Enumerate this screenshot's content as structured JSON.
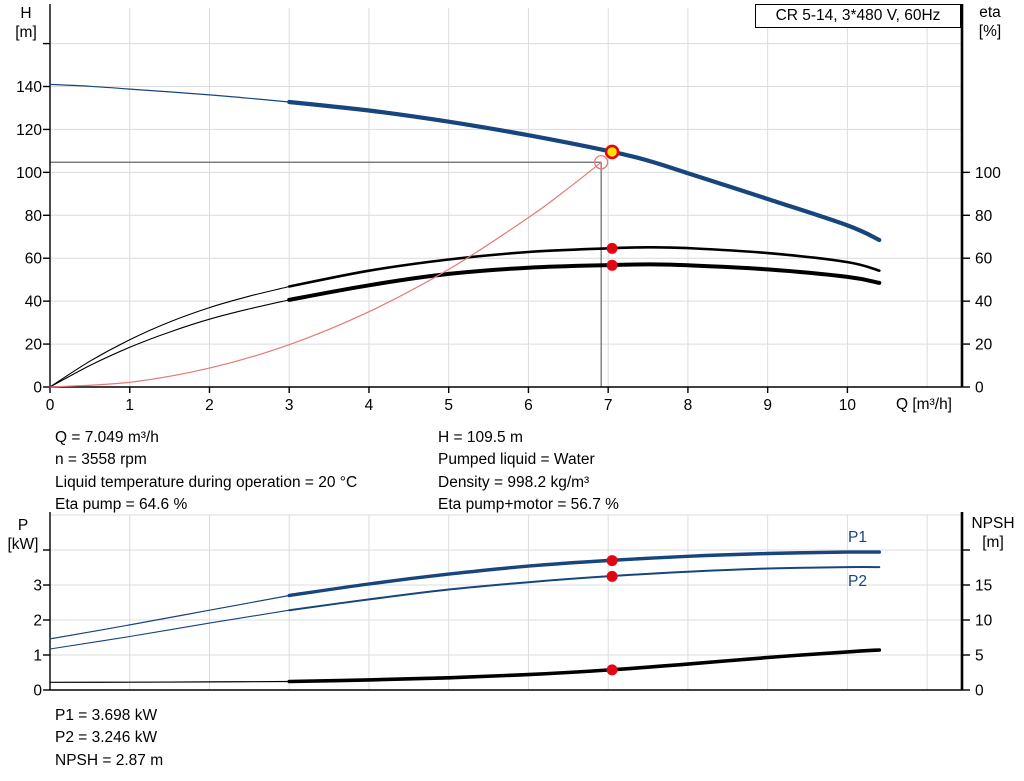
{
  "title_box": {
    "label": "CR 5-14, 3*480 V, 60Hz"
  },
  "colors": {
    "curve_blue": "#17457d",
    "curve_black": "#000000",
    "system_curve_red": "#e87878",
    "marker_red": "#e30613",
    "marker_yellow": "#ffe100",
    "crosshair_gray": "#666666",
    "grid_gray": "#dcdcdc",
    "axis_black": "#000000"
  },
  "chart_data": [
    {
      "type": "line",
      "title": "CR 5-14, 3*480 V, 60Hz",
      "x_axis": {
        "label": "Q [m³/h]",
        "min": 0,
        "max": 11.44,
        "ticks": [
          0,
          1,
          2,
          3,
          4,
          5,
          6,
          7,
          8,
          9,
          10
        ],
        "gridlines": [
          1,
          2,
          3,
          4,
          5,
          6,
          7,
          8,
          9,
          10,
          11
        ]
      },
      "y_left": {
        "label_1": "H",
        "label_2": "[m]",
        "min": 0,
        "max": 176,
        "ticks": [
          0,
          20,
          40,
          60,
          80,
          100,
          120,
          140
        ],
        "unlabeled_ticks": [
          160
        ],
        "gridlines": [
          20,
          40,
          60,
          80,
          100,
          120,
          140,
          160
        ]
      },
      "y_right": {
        "label_1": "eta",
        "label_2": "[%]",
        "min": 0,
        "ticks": [
          0,
          20,
          40,
          60,
          80,
          100
        ],
        "unlabeled_ticks": [],
        "scale_note": "1 % on right axis aligns with 1 m on left axis"
      },
      "series": [
        {
          "name": "head-curve",
          "axis": "left",
          "color": "curve_blue",
          "width_thin": 1.2,
          "width_thick": 4.2,
          "thin_before": 3,
          "points": [
            [
              0,
              141
            ],
            [
              0.5,
              140.1
            ],
            [
              1,
              138.8
            ],
            [
              1.5,
              137.5
            ],
            [
              2,
              136.1
            ],
            [
              2.5,
              134.5
            ],
            [
              3,
              132.8
            ],
            [
              4,
              128.8
            ],
            [
              5,
              123.6
            ],
            [
              6,
              117.3
            ],
            [
              7,
              110.0
            ],
            [
              7.5,
              105.5
            ],
            [
              8,
              99.6
            ],
            [
              9,
              87.6
            ],
            [
              10,
              75.3
            ],
            [
              10.4,
              68.5
            ]
          ]
        },
        {
          "name": "eta-pump-curve",
          "axis": "right",
          "color": "curve_black",
          "width_thin": 1.1,
          "width_thick": 2.6,
          "thin_before": 3,
          "points": [
            [
              0,
              0
            ],
            [
              0.5,
              12
            ],
            [
              1,
              22
            ],
            [
              1.5,
              30.3
            ],
            [
              2,
              37
            ],
            [
              2.5,
              42.3
            ],
            [
              3,
              46.8
            ],
            [
              4,
              54.2
            ],
            [
              5,
              59.4
            ],
            [
              6,
              62.9
            ],
            [
              7,
              64.6
            ],
            [
              7.5,
              65.1
            ],
            [
              8,
              64.7
            ],
            [
              9,
              62.4
            ],
            [
              10,
              58.2
            ],
            [
              10.4,
              54.2
            ]
          ]
        },
        {
          "name": "eta-pump-motor-curve",
          "axis": "right",
          "color": "curve_black",
          "width_thin": 1.1,
          "width_thick": 4.0,
          "thin_before": 3,
          "points": [
            [
              0,
              0
            ],
            [
              0.5,
              10
            ],
            [
              1,
              18.5
            ],
            [
              1.5,
              25.6
            ],
            [
              2,
              31.6
            ],
            [
              2.5,
              36.4
            ],
            [
              3,
              40.6
            ],
            [
              4,
              47.4
            ],
            [
              5,
              52.7
            ],
            [
              6,
              55.6
            ],
            [
              7,
              56.8
            ],
            [
              7.5,
              57.1
            ],
            [
              8,
              56.7
            ],
            [
              9,
              54.8
            ],
            [
              10,
              51.3
            ],
            [
              10.4,
              48.5
            ]
          ]
        },
        {
          "name": "system-curve",
          "axis": "left",
          "color": "system_curve_red",
          "width_thin": 1.2,
          "width_thick": 1.2,
          "thin_before": 99,
          "points": [
            [
              0,
              0
            ],
            [
              1,
              2.2
            ],
            [
              2,
              8.8
            ],
            [
              3,
              19.7
            ],
            [
              4,
              35.1
            ],
            [
              5,
              54.8
            ],
            [
              6,
              78.9
            ],
            [
              6.5,
              92.6
            ],
            [
              6.912,
              104.7
            ]
          ]
        }
      ],
      "crosshair": {
        "q": 6.912,
        "value": 104.7,
        "axis": "left"
      },
      "markers": [
        {
          "name": "requested-duty-point",
          "style": "open-red-circle",
          "axis": "left",
          "q": 6.912,
          "value": 104.7
        },
        {
          "name": "duty-point-head",
          "style": "yellow-dot-red-ring",
          "axis": "left",
          "q": 7.049,
          "value": 109.5
        },
        {
          "name": "duty-point-eta-pump",
          "style": "red-dot",
          "axis": "right",
          "q": 7.049,
          "value": 64.6
        },
        {
          "name": "duty-point-eta-pump-motor",
          "style": "red-dot",
          "axis": "right",
          "q": 7.049,
          "value": 56.7
        }
      ]
    },
    {
      "type": "line",
      "title": "",
      "x_axis": {
        "label": "",
        "min": 0,
        "max": 11.44,
        "ticks": [],
        "gridlines": [
          1,
          2,
          3,
          4,
          5,
          6,
          7,
          8,
          9,
          10,
          11
        ]
      },
      "y_left": {
        "label_1": "P",
        "label_2": "[kW]",
        "min": 0,
        "max": 5,
        "ticks": [
          0,
          1,
          2,
          3
        ],
        "unlabeled_ticks": [
          4
        ],
        "gridlines": [
          1,
          2,
          3,
          4,
          5
        ]
      },
      "y_right": {
        "label_1": "NPSH",
        "label_2": "[m]",
        "min": 0,
        "max": 25,
        "ticks": [
          0,
          5,
          10,
          15
        ],
        "unlabeled_ticks": [
          20
        ],
        "scale_note": "5 m NPSH aligns with 1 kW on left axis"
      },
      "curve_labels": [
        {
          "text": "P1"
        },
        {
          "text": "P2"
        }
      ],
      "series": [
        {
          "name": "p1-curve",
          "axis": "left",
          "color": "curve_blue",
          "width_thin": 1.2,
          "width_thick": 3.4,
          "thin_before": 3,
          "points": [
            [
              0,
              1.46
            ],
            [
              1,
              1.86
            ],
            [
              2,
              2.28
            ],
            [
              3,
              2.7
            ],
            [
              4,
              3.03
            ],
            [
              5,
              3.31
            ],
            [
              6,
              3.54
            ],
            [
              7,
              3.7
            ],
            [
              8,
              3.82
            ],
            [
              9,
              3.9
            ],
            [
              10,
              3.94
            ],
            [
              10.4,
              3.94
            ]
          ]
        },
        {
          "name": "p2-curve",
          "axis": "left",
          "color": "curve_blue",
          "width_thin": 1.1,
          "width_thick": 2.0,
          "thin_before": 3,
          "points": [
            [
              0,
              1.17
            ],
            [
              1,
              1.53
            ],
            [
              2,
              1.91
            ],
            [
              3,
              2.28
            ],
            [
              4,
              2.59
            ],
            [
              5,
              2.87
            ],
            [
              6,
              3.08
            ],
            [
              7,
              3.25
            ],
            [
              8,
              3.38
            ],
            [
              9,
              3.47
            ],
            [
              10,
              3.51
            ],
            [
              10.4,
              3.51
            ]
          ]
        },
        {
          "name": "npsh-curve",
          "axis": "right",
          "color": "curve_black",
          "width_thin": 1.2,
          "width_thick": 3.6,
          "thin_before": 3,
          "points": [
            [
              0,
              1.1
            ],
            [
              1,
              1.12
            ],
            [
              2,
              1.16
            ],
            [
              3,
              1.22
            ],
            [
              4,
              1.45
            ],
            [
              5,
              1.75
            ],
            [
              6,
              2.2
            ],
            [
              7,
              2.85
            ],
            [
              8,
              3.7
            ],
            [
              9,
              4.65
            ],
            [
              10,
              5.45
            ],
            [
              10.4,
              5.72
            ]
          ]
        }
      ],
      "markers": [
        {
          "name": "duty-point-p1",
          "style": "red-dot",
          "axis": "left",
          "q": 7.049,
          "value": 3.698
        },
        {
          "name": "duty-point-p2",
          "style": "red-dot",
          "axis": "left",
          "q": 7.049,
          "value": 3.246
        },
        {
          "name": "duty-point-npsh",
          "style": "red-dot",
          "axis": "right",
          "q": 7.049,
          "value": 2.87
        }
      ]
    }
  ],
  "annotations_top": {
    "left": [
      "Q = 7.049 m³/h",
      "n = 3558 rpm",
      "Liquid temperature during operation = 20 °C",
      "Eta pump = 64.6 %"
    ],
    "right": [
      "H = 109.5 m",
      "Pumped liquid = Water",
      "Density = 998.2 kg/m³",
      "Eta pump+motor = 56.7 %"
    ]
  },
  "annotations_bottom": [
    "P1 = 3.698 kW",
    "P2 = 3.246 kW",
    "NPSH = 2.87 m"
  ]
}
